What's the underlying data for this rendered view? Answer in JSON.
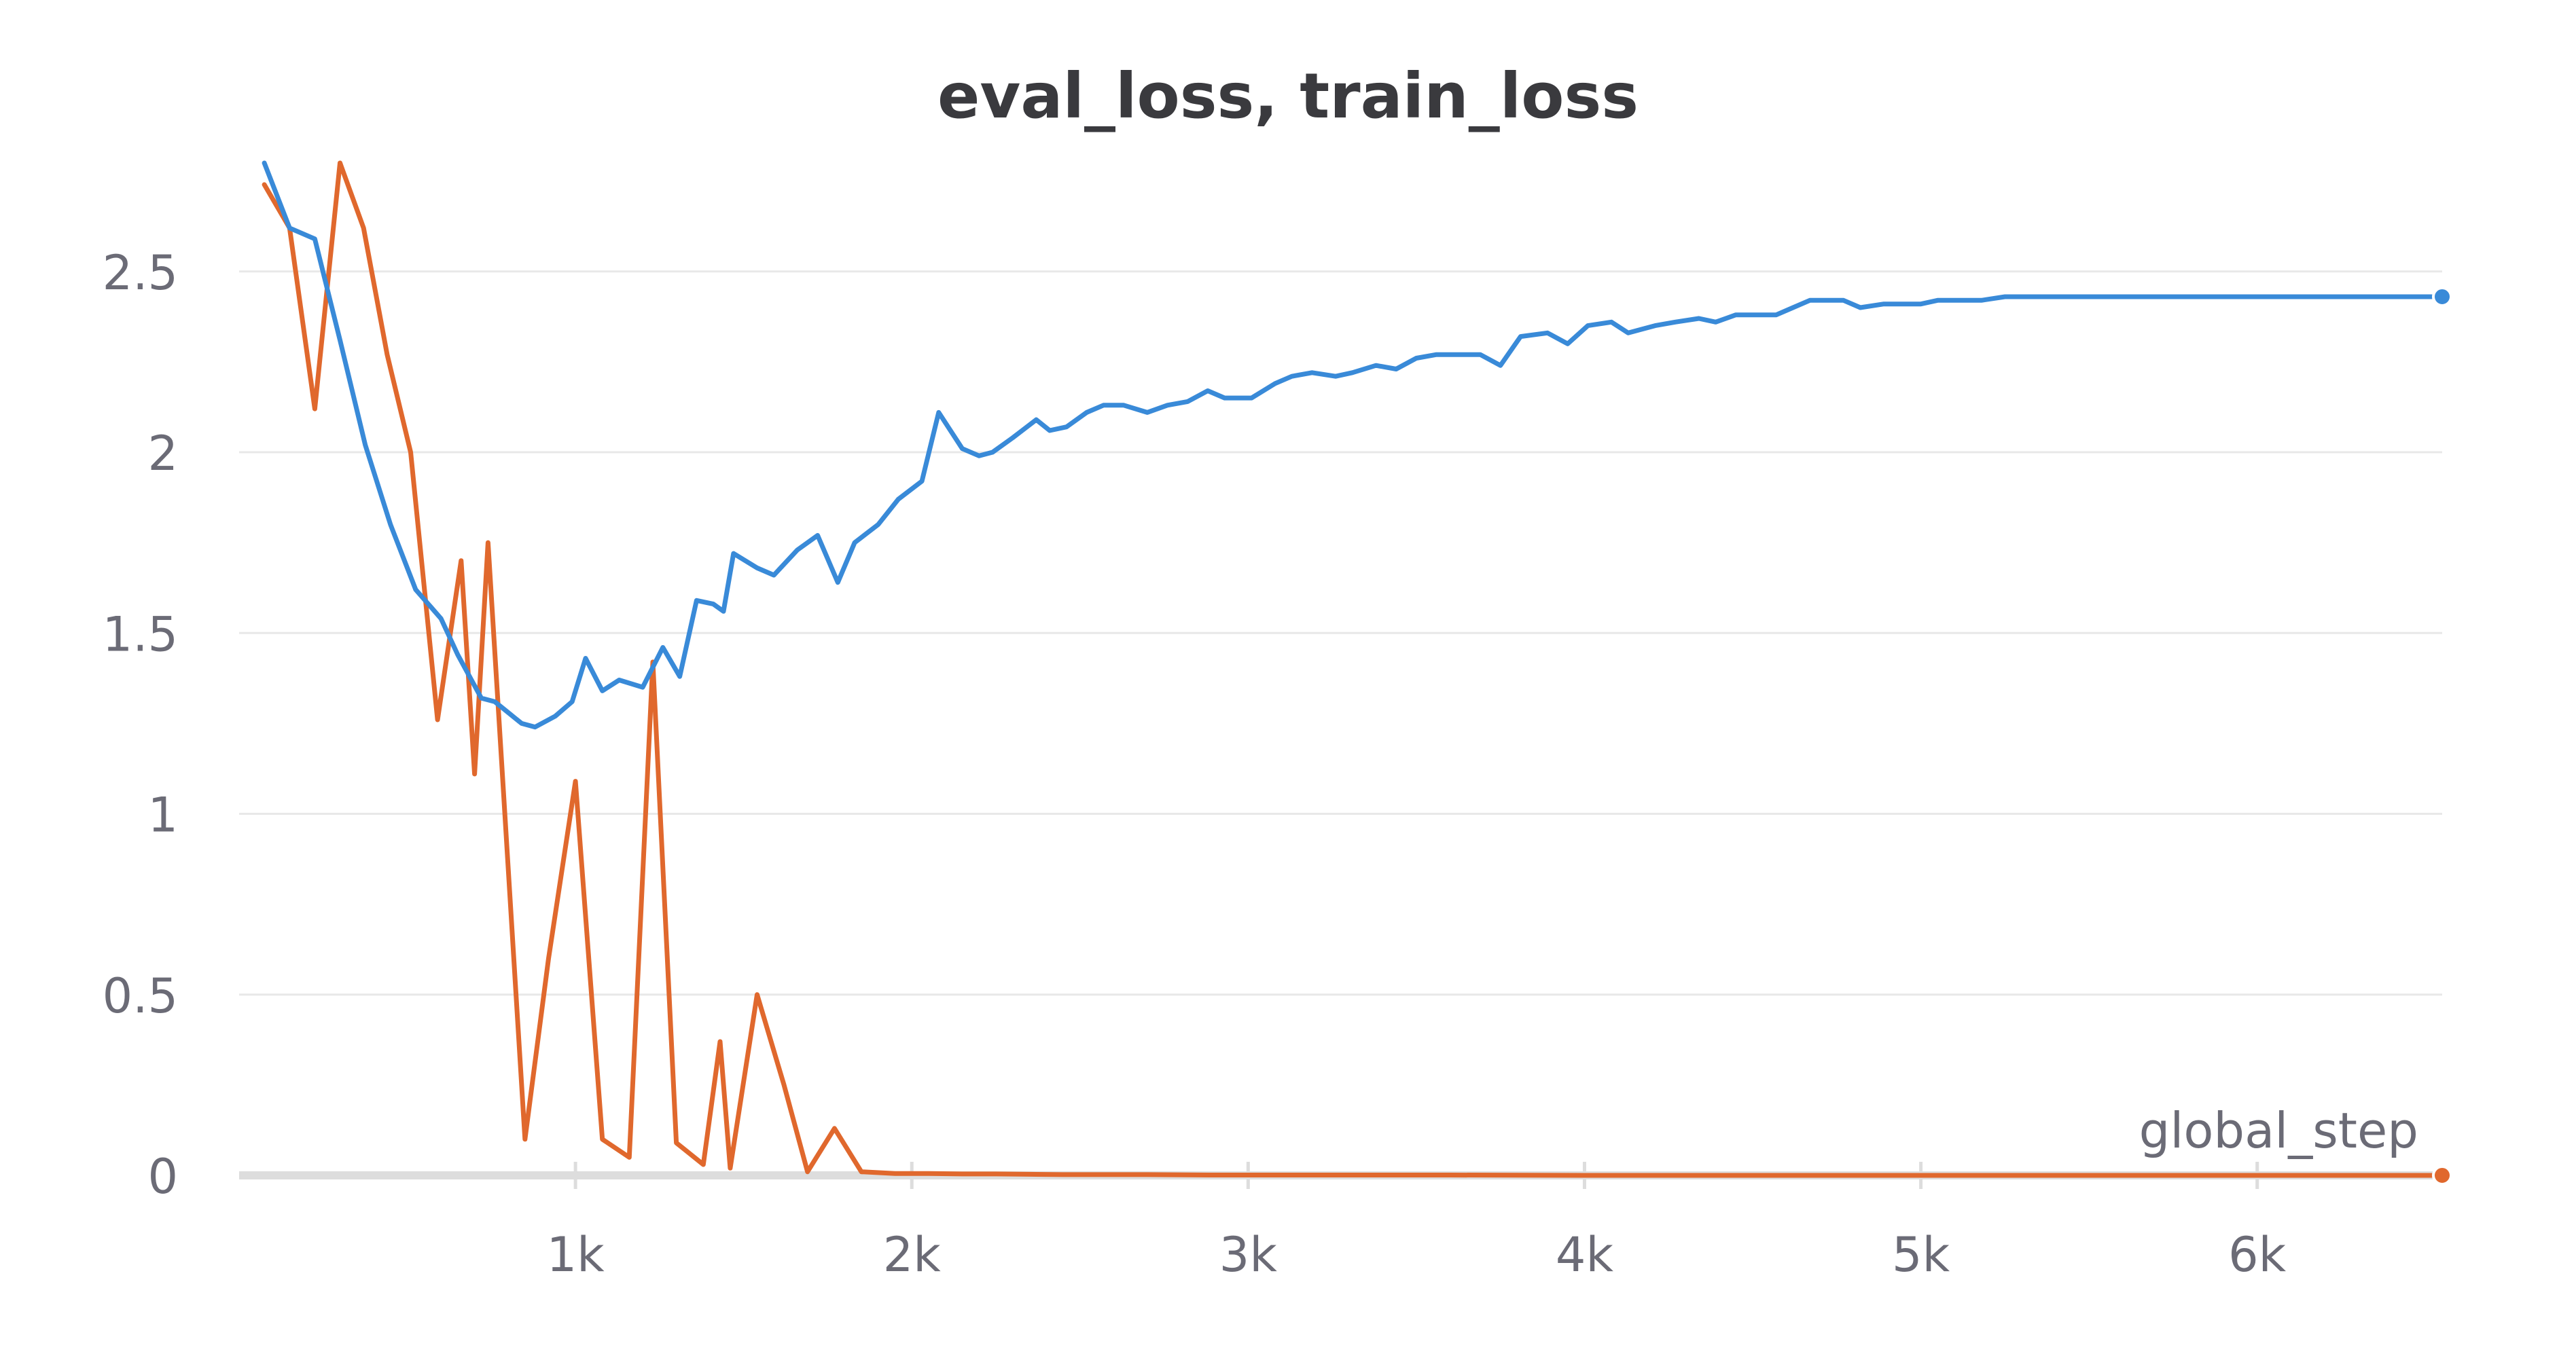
{
  "chart_data": {
    "type": "line",
    "title": "eval_loss, train_loss",
    "xlabel": "global_step",
    "ylabel": "",
    "xlim": [
      0,
      6550
    ],
    "ylim": [
      0,
      2.8
    ],
    "x_ticks": [
      1000,
      2000,
      3000,
      4000,
      5000,
      6000
    ],
    "x_tick_labels": [
      "1k",
      "2k",
      "3k",
      "4k",
      "5k",
      "6k"
    ],
    "y_ticks": [
      0,
      0.5,
      1,
      1.5,
      2,
      2.5
    ],
    "y_tick_labels": [
      "0",
      "0.5",
      "1",
      "1.5",
      "2",
      "2.5"
    ],
    "grid": true,
    "colors": {
      "eval_loss": "#398ad8",
      "train_loss": "#e0682d",
      "grid": "#e8e8e8",
      "axis": "#dddddd",
      "tick_text": "#6b6b76",
      "title_text": "#3a3a3e"
    },
    "series": [
      {
        "key": "eval_loss",
        "color": "#398ad8",
        "x": [
          75,
          150,
          225,
          300,
          375,
          450,
          525,
          600,
          650,
          720,
          760,
          800,
          840,
          880,
          940,
          990,
          1030,
          1080,
          1130,
          1200,
          1260,
          1310,
          1360,
          1410,
          1440,
          1470,
          1540,
          1590,
          1660,
          1720,
          1780,
          1830,
          1900,
          1960,
          2030,
          2080,
          2150,
          2200,
          2240,
          2300,
          2370,
          2410,
          2460,
          2520,
          2570,
          2630,
          2700,
          2760,
          2820,
          2880,
          2930,
          3010,
          3080,
          3130,
          3190,
          3260,
          3310,
          3380,
          3440,
          3500,
          3560,
          3630,
          3690,
          3750,
          3810,
          3890,
          3950,
          4010,
          4080,
          4130,
          4210,
          4270,
          4340,
          4390,
          4450,
          4520,
          4570,
          4620,
          4670,
          4720,
          4770,
          4820,
          4890,
          4940,
          5000,
          5050,
          5120,
          5180,
          5250,
          5310,
          5380,
          5420,
          5490,
          5540,
          5590,
          5640,
          5700,
          5760,
          5820,
          5880,
          5950,
          6010,
          6090,
          6150,
          6210,
          6280,
          6340,
          6410,
          6480,
          6550
        ],
        "y": [
          2.8,
          2.62,
          2.59,
          2.31,
          2.02,
          1.8,
          1.62,
          1.54,
          1.44,
          1.32,
          1.31,
          1.28,
          1.25,
          1.24,
          1.27,
          1.31,
          1.43,
          1.34,
          1.37,
          1.35,
          1.46,
          1.38,
          1.59,
          1.58,
          1.56,
          1.72,
          1.68,
          1.66,
          1.73,
          1.77,
          1.64,
          1.75,
          1.8,
          1.87,
          1.92,
          2.11,
          2.01,
          1.99,
          2.0,
          2.04,
          2.09,
          2.06,
          2.07,
          2.11,
          2.13,
          2.13,
          2.11,
          2.13,
          2.14,
          2.17,
          2.15,
          2.15,
          2.19,
          2.21,
          2.22,
          2.21,
          2.22,
          2.24,
          2.23,
          2.26,
          2.27,
          2.27,
          2.27,
          2.24,
          2.32,
          2.33,
          2.3,
          2.35,
          2.36,
          2.33,
          2.35,
          2.36,
          2.37,
          2.36,
          2.38,
          2.38,
          2.38,
          2.4,
          2.42,
          2.42,
          2.42,
          2.4,
          2.41,
          2.41,
          2.41,
          2.42,
          2.42,
          2.42,
          2.43,
          2.43,
          2.43,
          2.43,
          2.43,
          2.43,
          2.43,
          2.43,
          2.43,
          2.43,
          2.43,
          2.43,
          2.43,
          2.43,
          2.43,
          2.43,
          2.43,
          2.43,
          2.43,
          2.43,
          2.43,
          2.43
        ]
      },
      {
        "key": "train_loss",
        "color": "#e0682d",
        "x": [
          75,
          150,
          225,
          300,
          370,
          440,
          510,
          590,
          660,
          700,
          740,
          780,
          850,
          920,
          1000,
          1080,
          1160,
          1230,
          1300,
          1380,
          1430,
          1460,
          1540,
          1620,
          1690,
          1770,
          1850,
          1950,
          2050,
          2150,
          2250,
          2350,
          2450,
          2550,
          2700,
          2900,
          3200,
          3600,
          4000,
          4500,
          5000,
          5500,
          6000,
          6550
        ],
        "y": [
          2.74,
          2.62,
          2.12,
          2.8,
          2.62,
          2.27,
          2.0,
          1.26,
          1.7,
          1.11,
          1.75,
          1.15,
          0.1,
          0.6,
          1.09,
          0.1,
          0.05,
          1.42,
          0.09,
          0.03,
          0.37,
          0.02,
          0.5,
          0.25,
          0.01,
          0.13,
          0.01,
          0.005,
          0.005,
          0.004,
          0.004,
          0.003,
          0.002,
          0.002,
          0.002,
          0.001,
          0.001,
          0.001,
          0.0,
          0.0,
          0.0,
          0.0,
          0.0,
          0.0
        ]
      }
    ]
  }
}
